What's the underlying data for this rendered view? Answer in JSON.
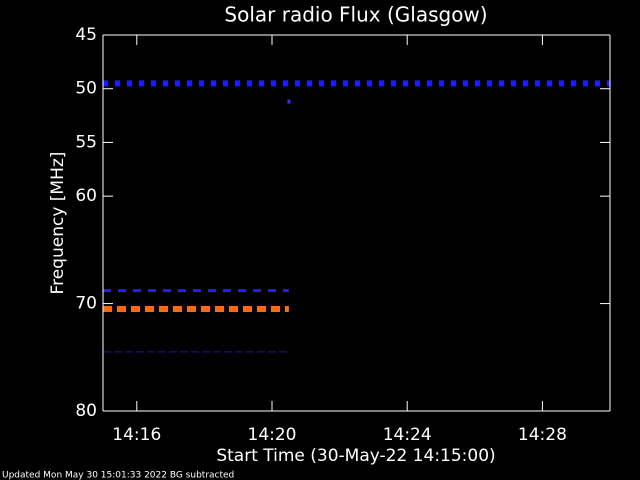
{
  "chart_data": {
    "type": "spectrogram",
    "title": "Solar radio Flux (Glasgow)",
    "y_label": "Frequency [MHz]",
    "x_label": "Start Time (30-May-22 14:15:00)",
    "footer": "Updated Mon May 30 15:01:33 2022   BG subtracted",
    "background": "#000000",
    "xlim": [
      15,
      30
    ],
    "xticks": [
      {
        "value": 16,
        "label": "14:16"
      },
      {
        "value": 20,
        "label": "14:20"
      },
      {
        "value": 24,
        "label": "14:24"
      },
      {
        "value": 28,
        "label": "14:28"
      }
    ],
    "ylim": [
      45,
      80
    ],
    "yticks": [
      45,
      50,
      55,
      60,
      70,
      80
    ],
    "features": [
      {
        "freq": 49.5,
        "x": [
          15,
          30
        ],
        "color": "#1c1cff",
        "width": 6,
        "dash": [
          5,
          7
        ]
      },
      {
        "freq": 68.8,
        "x": [
          15,
          20.5
        ],
        "color": "#2020ff",
        "width": 3,
        "dash": [
          8,
          7
        ]
      },
      {
        "freq": 70.5,
        "x": [
          15,
          20.5
        ],
        "color": "#ff6a10",
        "width": 6,
        "dash": [
          9,
          5
        ]
      },
      {
        "freq": 74.5,
        "x": [
          15,
          20.5
        ],
        "color": "#1a1a9a",
        "width": 1,
        "dash": [
          8,
          3
        ]
      }
    ],
    "points": [
      {
        "x": 20.5,
        "freq": 51.2,
        "color": "#3030ff"
      }
    ]
  }
}
